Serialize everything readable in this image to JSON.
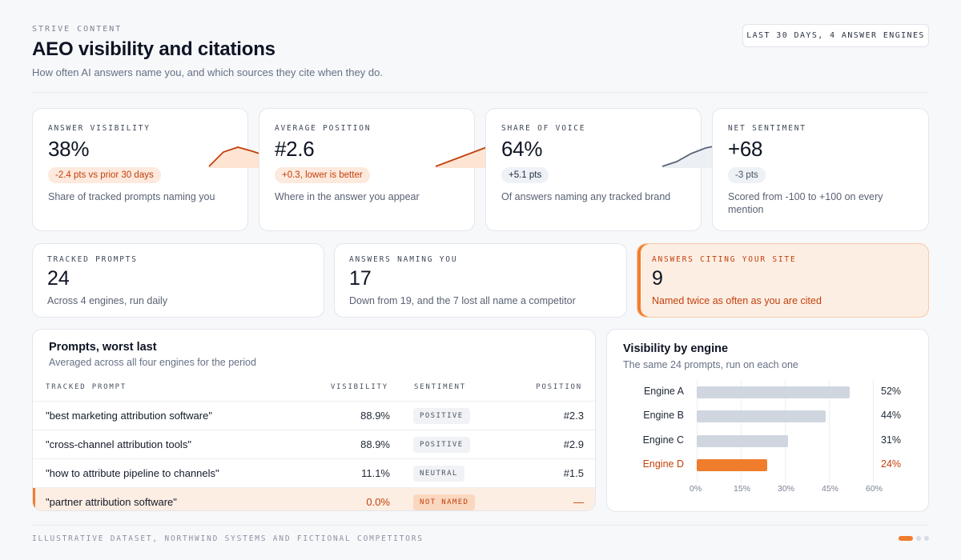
{
  "header": {
    "eyebrow": "STRIVE CONTENT",
    "title": "AEO visibility and citations",
    "subtitle": "How often AI answers name you, and which sources they cite when they do.",
    "range": "LAST 30 DAYS, 4 ANSWER ENGINES"
  },
  "kpis": [
    {
      "label": "ANSWER VISIBILITY",
      "value": "38%",
      "delta": "-2.4 pts vs prior 30 days",
      "desc": "Share of tracked prompts naming you"
    },
    {
      "label": "AVERAGE POSITION",
      "value": "#2.6",
      "delta": "+0.3, lower is better",
      "desc": "Where in the answer you appear"
    },
    {
      "label": "SHARE OF VOICE",
      "value": "64%",
      "delta": "+5.1 pts",
      "desc": "Of answers naming any tracked brand"
    },
    {
      "label": "NET SENTIMENT",
      "value": "+68",
      "delta": "-3 pts",
      "desc": "Scored from -100 to +100 on every mention"
    }
  ],
  "stats": [
    {
      "label": "TRACKED PROMPTS",
      "value": "24",
      "desc": "Across 4 engines, run daily"
    },
    {
      "label": "ANSWERS NAMING YOU",
      "value": "17",
      "desc": "Down from 19, and the 7 lost all name a competitor"
    },
    {
      "label": "ANSWERS CITING YOUR SITE",
      "value": "9",
      "desc": "Named twice as often as you are cited"
    }
  ],
  "prompts_table": {
    "title": "Prompts, worst last",
    "subtitle": "Averaged across all four engines for the period",
    "columns": [
      "TRACKED PROMPT",
      "VISIBILITY",
      "SENTIMENT",
      "POSITION"
    ],
    "rows": [
      [
        "\"best marketing attribution software\"",
        "88.9%",
        "POSITIVE",
        "#2.3"
      ],
      [
        "\"cross-channel attribution tools\"",
        "88.9%",
        "POSITIVE",
        "#2.9"
      ],
      [
        "\"how to attribute pipeline to channels\"",
        "11.1%",
        "NEUTRAL",
        "#1.5"
      ],
      [
        "\"partner attribution software\"",
        "0.0%",
        "NOT NAMED",
        "—"
      ]
    ]
  },
  "engine_panel": {
    "title": "Visibility by engine",
    "subtitle": "The same 24 prompts, run on each one"
  },
  "chart_data": {
    "type": "bar",
    "categories": [
      "Engine A",
      "Engine B",
      "Engine C",
      "Engine D"
    ],
    "values": [
      52,
      44,
      31,
      24
    ],
    "value_labels": [
      "52%",
      "44%",
      "31%",
      "24%"
    ],
    "xlim": [
      0,
      60
    ],
    "x_ticks": [
      "0%",
      "15%",
      "30%",
      "45%",
      "60%"
    ],
    "highlight": "Engine D",
    "colors": {
      "bar": "#cfd6e0",
      "highlight": "#f07d2c"
    }
  },
  "colors": {
    "accent": "#f07d2c",
    "warn_text": "#c2410c"
  },
  "footer": {
    "note": "ILLUSTRATIVE DATASET, NORTHWIND SYSTEMS AND FICTIONAL COMPETITORS"
  }
}
